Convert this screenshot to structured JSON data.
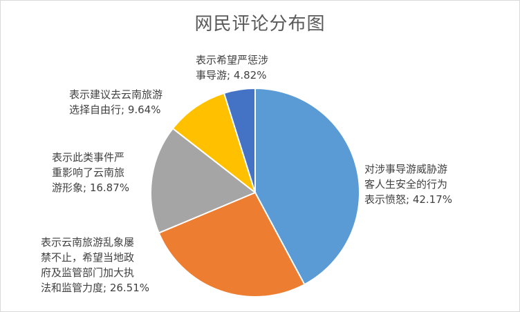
{
  "chart_data": {
    "type": "pie",
    "title": "网民评论分布图",
    "slices": [
      {
        "label_lines": [
          "对涉事导游威胁游",
          "客人生安全的行为",
          "表示愤怒; 42.17%"
        ],
        "value": 42.17,
        "color": "#5B9BD5"
      },
      {
        "label_lines": [
          "表示云南旅游乱象屡",
          "禁不止，希望当地政",
          "府及监管部门加大执",
          "法和监管力度; 26.51%"
        ],
        "value": 26.51,
        "color": "#ED7D31"
      },
      {
        "label_lines": [
          "表示此类事件严",
          "重影响了云南旅",
          "游形象; 16.87%"
        ],
        "value": 16.87,
        "color": "#A5A5A5"
      },
      {
        "label_lines": [
          "表示建议去云南旅游",
          "选择自由行; 9.64%"
        ],
        "value": 9.64,
        "color": "#FFC000"
      },
      {
        "label_lines": [
          "表示希望严惩涉",
          "事导游; 4.82%"
        ],
        "value": 4.82,
        "color": "#4472C4"
      }
    ]
  }
}
